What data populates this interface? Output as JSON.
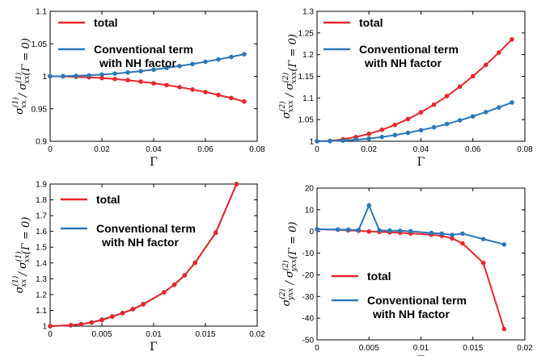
{
  "colors": {
    "total": "#e8262b",
    "nh": "#2b78b8"
  },
  "chart_data": [
    {
      "type": "line",
      "xlabel": "Γ",
      "ylabel": "σxx(1) / σxx(1)(Γ = 0)",
      "ylabel_parts": {
        "main": "σ",
        "sup": "(1)",
        "sub": "xx",
        "sep": " / ",
        "tail": "(Γ = 0)"
      },
      "xlim": [
        0,
        0.08
      ],
      "ylim": [
        0.9,
        1.1
      ],
      "xticks": [
        0,
        0.02,
        0.04,
        0.06,
        0.08
      ],
      "yticks": [
        0.9,
        0.95,
        1,
        1.05,
        1.1
      ],
      "xtick_labels": [
        "0",
        "0.02",
        "0.04",
        "0.06",
        "0.08"
      ],
      "ytick_labels": [
        "0.9",
        "0.95",
        "1",
        "1.05",
        "1.1"
      ],
      "legend": [
        "total",
        "Conventional term\nwith NH factor"
      ],
      "legend_position": "top-left",
      "series": [
        {
          "name": "total",
          "color": "#e8262b",
          "x": [
            0,
            0.005,
            0.01,
            0.015,
            0.02,
            0.025,
            0.03,
            0.035,
            0.04,
            0.045,
            0.05,
            0.055,
            0.06,
            0.065,
            0.07,
            0.075
          ],
          "y": [
            1.0,
            0.9998,
            0.9993,
            0.9985,
            0.9973,
            0.9958,
            0.994,
            0.9918,
            0.9893,
            0.9865,
            0.9833,
            0.9797,
            0.9757,
            0.9713,
            0.9665,
            0.9612
          ]
        },
        {
          "name": "Conventional term\nwith NH factor",
          "color": "#2b78b8",
          "x": [
            0,
            0.005,
            0.01,
            0.015,
            0.02,
            0.025,
            0.03,
            0.035,
            0.04,
            0.045,
            0.05,
            0.055,
            0.06,
            0.065,
            0.07,
            0.075
          ],
          "y": [
            1.0,
            1.0002,
            1.0007,
            1.0015,
            1.0027,
            1.0041,
            1.0059,
            1.0079,
            1.0103,
            1.0129,
            1.0158,
            1.0189,
            1.0223,
            1.0259,
            1.0298,
            1.034
          ]
        }
      ]
    },
    {
      "type": "line",
      "xlabel": "Γ",
      "ylabel": "σxxx(2) / σxxx(2)(Γ = 0)",
      "ylabel_parts": {
        "main": "σ",
        "sup": "(2)",
        "sub": "xxx",
        "sep": " / ",
        "tail": "(Γ = 0)"
      },
      "xlim": [
        0,
        0.08
      ],
      "ylim": [
        1,
        1.3
      ],
      "xticks": [
        0,
        0.02,
        0.04,
        0.06,
        0.08
      ],
      "yticks": [
        1,
        1.05,
        1.1,
        1.15,
        1.2,
        1.25,
        1.3
      ],
      "xtick_labels": [
        "0",
        "0.02",
        "0.04",
        "0.06",
        "0.08"
      ],
      "ytick_labels": [
        "1",
        "1.05",
        "1.1",
        "1.15",
        "1.2",
        "1.25",
        "1.3"
      ],
      "legend": [
        "total",
        "Conventional term\nwith NH factor"
      ],
      "legend_position": "top-left",
      "series": [
        {
          "name": "total",
          "color": "#e8262b",
          "x": [
            0,
            0.005,
            0.01,
            0.015,
            0.02,
            0.025,
            0.03,
            0.035,
            0.04,
            0.045,
            0.05,
            0.055,
            0.06,
            0.065,
            0.07,
            0.075
          ],
          "y": [
            1.0,
            1.0012,
            1.0045,
            1.0098,
            1.0171,
            1.0264,
            1.0379,
            1.0513,
            1.0669,
            1.0845,
            1.1043,
            1.1261,
            1.1502,
            1.1764,
            1.2048,
            1.2351
          ]
        },
        {
          "name": "Conventional term\nwith NH factor",
          "color": "#2b78b8",
          "x": [
            0,
            0.005,
            0.01,
            0.015,
            0.02,
            0.025,
            0.03,
            0.035,
            0.04,
            0.045,
            0.05,
            0.055,
            0.06,
            0.065,
            0.07,
            0.075
          ],
          "y": [
            1.0,
            1.0004,
            1.0016,
            1.0036,
            1.0063,
            1.0099,
            1.0143,
            1.0195,
            1.0255,
            1.0323,
            1.0399,
            1.0483,
            1.0575,
            1.0674,
            1.0781,
            1.0895
          ]
        }
      ]
    },
    {
      "type": "line",
      "xlabel": "Γ",
      "ylabel": "σxx(1) / σxx(1)(Γ = 0)",
      "ylabel_parts": {
        "main": "σ",
        "sup": "(1)",
        "sub": "xx",
        "sep": " / ",
        "tail": "(Γ = 0)"
      },
      "xlim": [
        0,
        0.02
      ],
      "ylim": [
        1,
        1.9
      ],
      "xticks": [
        0,
        0.005,
        0.01,
        0.015,
        0.02
      ],
      "yticks": [
        1,
        1.1,
        1.2,
        1.3,
        1.4,
        1.5,
        1.6,
        1.7,
        1.8,
        1.9
      ],
      "xtick_labels": [
        "0",
        "0.005",
        "0.01",
        "0.015",
        "0.02"
      ],
      "ytick_labels": [
        "1",
        "1.1",
        "1.2",
        "1.3",
        "1.4",
        "1.5",
        "1.6",
        "1.7",
        "1.8",
        "1.9"
      ],
      "legend": [
        "total",
        "Conventional term\nwith NH factor"
      ],
      "legend_position": "top-left",
      "series": [
        {
          "name": "Conventional term\nwith NH factor",
          "color": "#2b78b8",
          "x": [
            0,
            0.002,
            0.003,
            0.004,
            0.005,
            0.006,
            0.007,
            0.008,
            0.009,
            0.011,
            0.012,
            0.013,
            0.014,
            0.016,
            0.018
          ],
          "y": [
            1.0,
            1.005,
            1.013,
            1.024,
            1.041,
            1.062,
            1.083,
            1.108,
            1.14,
            1.215,
            1.264,
            1.323,
            1.402,
            1.593,
            1.9
          ]
        },
        {
          "name": "total",
          "color": "#e8262b",
          "x": [
            0,
            0.002,
            0.003,
            0.004,
            0.005,
            0.006,
            0.007,
            0.008,
            0.009,
            0.011,
            0.012,
            0.013,
            0.014,
            0.016,
            0.018
          ],
          "y": [
            1.0,
            1.006,
            1.012,
            1.023,
            1.039,
            1.06,
            1.082,
            1.107,
            1.138,
            1.214,
            1.262,
            1.322,
            1.401,
            1.592,
            1.9
          ]
        }
      ]
    },
    {
      "type": "line",
      "xlabel": "Γ",
      "ylabel": "σyxx(2) / σyxx(2)(Γ = 0)",
      "ylabel_parts": {
        "main": "σ",
        "sup": "(2)",
        "sub": "yxx",
        "sep": " / ",
        "tail": "(Γ = 0)"
      },
      "xlim": [
        0,
        0.02
      ],
      "ylim": [
        -50,
        20
      ],
      "xticks": [
        0,
        0.005,
        0.01,
        0.015,
        0.02
      ],
      "yticks": [
        -50,
        -40,
        -30,
        -20,
        -10,
        0,
        10,
        20
      ],
      "xtick_labels": [
        "0",
        "0.005",
        "0.01",
        "0.015",
        "0.02"
      ],
      "ytick_labels": [
        "-50",
        "-40",
        "-30",
        "-20",
        "-10",
        "0",
        "10",
        "20"
      ],
      "legend": [
        "total",
        "Conventional term\nwith NH factor"
      ],
      "legend_position": "bottom-left",
      "series": [
        {
          "name": "total",
          "color": "#e8262b",
          "x": [
            0,
            0.002,
            0.003,
            0.004,
            0.005,
            0.006,
            0.007,
            0.008,
            0.009,
            0.011,
            0.012,
            0.013,
            0.014,
            0.016,
            0.018
          ],
          "y": [
            1,
            0.8,
            0.5,
            0.3,
            0.0,
            -0.2,
            -0.4,
            -0.6,
            -0.9,
            -1.5,
            -2.0,
            -3.2,
            -5.5,
            -14.5,
            -45
          ]
        },
        {
          "name": "Conventional term\nwith NH factor",
          "color": "#2b78b8",
          "x": [
            0,
            0.002,
            0.003,
            0.004,
            0.005,
            0.006,
            0.007,
            0.008,
            0.009,
            0.011,
            0.012,
            0.013,
            0.014,
            0.016,
            0.018
          ],
          "y": [
            1,
            0.9,
            0.8,
            0.7,
            12,
            0.5,
            0.4,
            0.3,
            0.1,
            -0.7,
            -1.0,
            -1.6,
            -1.0,
            -3.5,
            -6
          ]
        }
      ]
    }
  ]
}
